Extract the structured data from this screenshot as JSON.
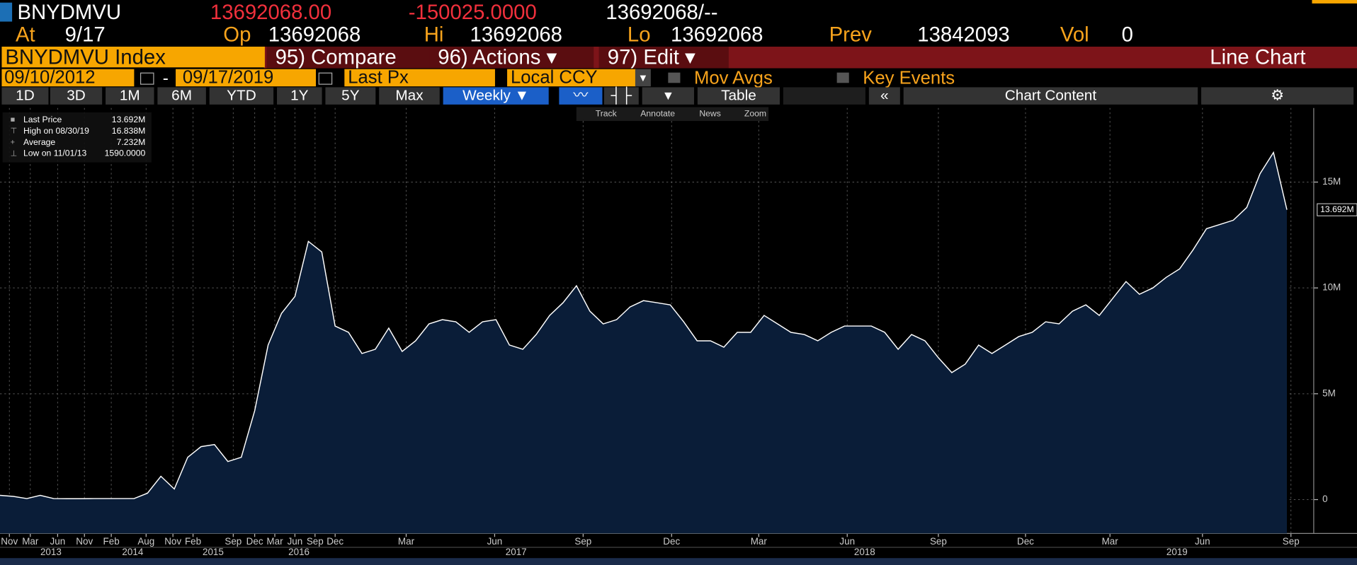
{
  "header": {
    "ticker": "BNYDMVU",
    "last": "13692068.00",
    "change": "-150025.0000",
    "bidask": "13692068/--",
    "at_label": "At",
    "at": "9/17",
    "op_label": "Op",
    "op": "13692068",
    "hi_label": "Hi",
    "hi": "13692068",
    "lo_label": "Lo",
    "lo": "13692068",
    "prev_label": "Prev",
    "prev": "13842093",
    "vol_label": "Vol",
    "vol": "0"
  },
  "menu": {
    "security": "BNYDMVU Index",
    "compare": "95) Compare",
    "actions": "96) Actions",
    "edit": "97) Edit",
    "chart_type": "Line Chart"
  },
  "controls": {
    "start": "09/10/2012",
    "sep": "-",
    "end": "09/17/2019",
    "field": "Last Px",
    "currency": "Local CCY",
    "mov_avgs": "Mov Avgs",
    "key_events": "Key Events"
  },
  "periods": [
    "1D",
    "3D",
    "1M",
    "6M",
    "YTD",
    "1Y",
    "5Y",
    "Max"
  ],
  "frequency": "Weekly",
  "table": "Table",
  "chart_content": "Chart Content",
  "toolbar": [
    "Track",
    "Annotate",
    "News",
    "Zoom"
  ],
  "legend": [
    {
      "label": "Last Price",
      "value": "13.692M"
    },
    {
      "label": "High on 08/30/19",
      "value": "16.838M"
    },
    {
      "label": "Average",
      "value": "7.232M"
    },
    {
      "label": "Low on 11/01/13",
      "value": "1590.0000"
    }
  ],
  "chart_data": {
    "type": "area",
    "color": "#ffffff",
    "fill": "#0a1d38",
    "values": [
      0.2,
      0.15,
      0.05,
      0.2,
      0.05,
      0.04,
      0.04,
      0.05,
      0.05,
      0.05,
      0.05,
      0.3,
      1.1,
      0.5,
      2.0,
      2.5,
      2.6,
      1.8,
      2.0,
      4.2,
      7.3,
      8.8,
      9.6,
      12.2,
      11.7,
      8.2,
      7.9,
      6.9,
      7.1,
      8.1,
      7.0,
      7.5,
      8.3,
      8.5,
      8.4,
      7.9,
      8.4,
      8.5,
      7.3,
      7.1,
      7.8,
      8.7,
      9.3,
      10.1,
      8.9,
      8.3,
      8.5,
      9.1,
      9.4,
      9.3,
      9.2,
      8.4,
      7.5,
      7.5,
      7.2,
      7.9,
      7.9,
      8.7,
      8.3,
      7.9,
      7.8,
      7.5,
      7.9,
      8.2,
      8.2,
      8.2,
      7.9,
      7.1,
      7.8,
      7.5,
      6.7,
      6.0,
      6.4,
      7.3,
      6.9,
      7.3,
      7.7,
      7.9,
      8.4,
      8.3,
      8.9,
      9.2,
      8.7,
      9.5,
      10.3,
      9.7,
      10.0,
      10.5,
      10.9,
      11.8,
      12.8,
      13.0,
      13.2,
      13.8,
      15.4,
      16.4,
      13.692
    ],
    "last_label": "13.692M",
    "xlim": [
      0,
      98
    ],
    "ylim": [
      -1.6,
      18.5
    ],
    "yticks": [
      0,
      {
        "value": 5,
        "label": "5M"
      },
      {
        "value": 10,
        "label": "10M"
      },
      {
        "value": 15,
        "label": "15M"
      }
    ],
    "xticks": [
      {
        "value": 0.7,
        "label": "Nov"
      },
      {
        "value": 2.26,
        "label": "Mar"
      },
      {
        "value": 4.3,
        "label": "Jun"
      },
      {
        "value": 6.3,
        "label": "Nov"
      },
      {
        "value": 8.3,
        "label": "Feb"
      },
      {
        "value": 10.9,
        "label": "Aug"
      },
      {
        "value": 12.9,
        "label": "Nov"
      },
      {
        "value": 14.4,
        "label": "Feb"
      },
      {
        "value": 17.4,
        "label": "Sep"
      },
      {
        "value": 19.0,
        "label": "Dec"
      },
      {
        "value": 20.5,
        "label": "Mar"
      },
      {
        "value": 22.0,
        "label": "Jun"
      },
      {
        "value": 23.5,
        "label": "Sep"
      },
      {
        "value": 25.0,
        "label": "Dec"
      },
      {
        "value": 30.3,
        "label": "Mar"
      },
      {
        "value": 36.9,
        "label": "Jun"
      },
      {
        "value": 43.5,
        "label": "Sep"
      },
      {
        "value": 50.1,
        "label": "Dec"
      },
      {
        "value": 56.6,
        "label": "Mar"
      },
      {
        "value": 63.2,
        "label": "Jun"
      },
      {
        "value": 70.0,
        "label": "Sep"
      },
      {
        "value": 76.5,
        "label": "Dec"
      },
      {
        "value": 82.8,
        "label": "Mar"
      },
      {
        "value": 89.7,
        "label": "Jun"
      },
      {
        "value": 96.3,
        "label": "Sep"
      }
    ],
    "year_ticks": [
      {
        "value": 3.8,
        "label": "2013"
      },
      {
        "value": 9.9,
        "label": "2014"
      },
      {
        "value": 15.9,
        "label": "2015"
      },
      {
        "value": 22.3,
        "label": "2016"
      },
      {
        "value": 38.5,
        "label": "2017"
      },
      {
        "value": 64.5,
        "label": "2018"
      },
      {
        "value": 87.8,
        "label": "2019"
      }
    ],
    "grid": true
  }
}
